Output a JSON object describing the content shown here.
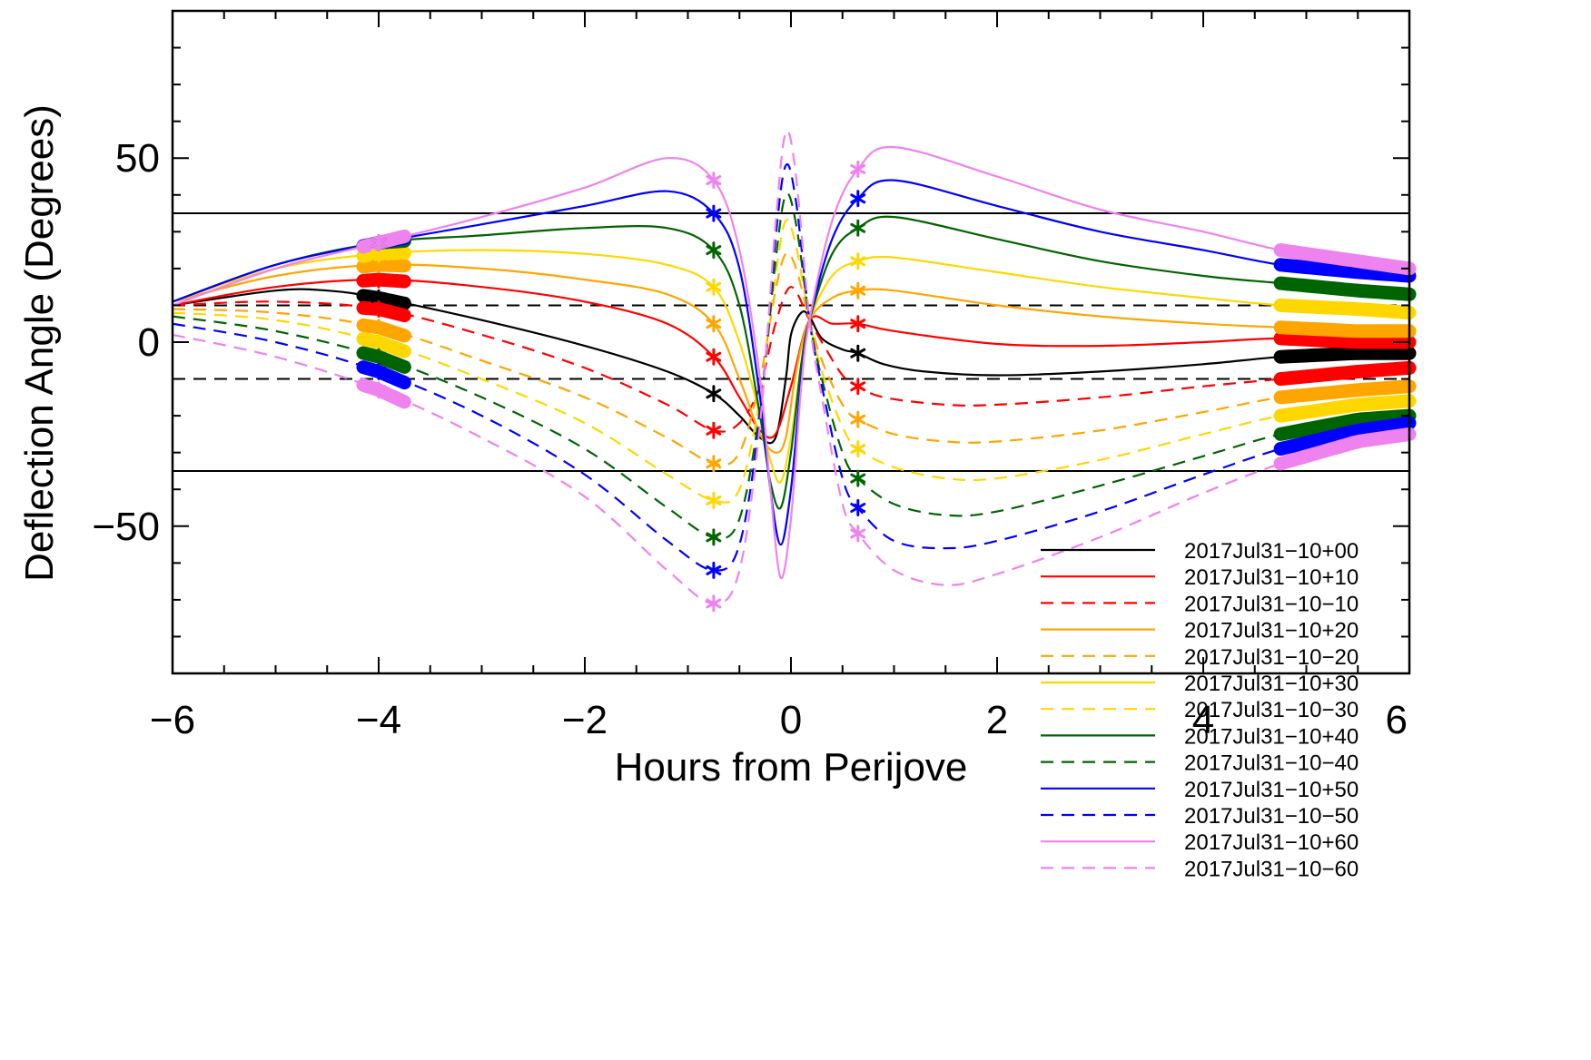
{
  "chart_data": {
    "type": "line",
    "title": "",
    "xlabel": "Hours from Perijove",
    "ylabel": "Deflection Angle (Degrees)",
    "xlim": [
      -6,
      6
    ],
    "ylim": [
      -90,
      90
    ],
    "xticks": [
      -6,
      -4,
      -2,
      0,
      2,
      4,
      6
    ],
    "yticks": [
      -50,
      0,
      50
    ],
    "xtick_labels": [
      "−6",
      "−4",
      "−2",
      "0",
      "2",
      "4",
      "6"
    ],
    "ytick_labels": [
      "−50",
      "0",
      "50"
    ],
    "grid": false,
    "legend_position": "bottom-right",
    "reference_lines": [
      {
        "y": 35,
        "style": "solid",
        "color": "#000000"
      },
      {
        "y": -35,
        "style": "solid",
        "color": "#000000"
      },
      {
        "y": 10,
        "style": "dashed",
        "color": "#000000"
      },
      {
        "y": -10,
        "style": "dashed",
        "color": "#000000"
      }
    ],
    "marker_x": [
      -4.0,
      -0.75,
      0.65
    ],
    "band_x": {
      "left": [
        -4.15,
        -3.75
      ],
      "right": [
        4.75,
        6.0
      ]
    },
    "series": [
      {
        "name": "2017Jul31−10+00",
        "color": "#000000",
        "style": "solid",
        "x": [
          -6,
          -5,
          -4.5,
          -4,
          -3,
          -2,
          -1.2,
          -0.75,
          -0.5,
          -0.3,
          -0.15,
          -0.05,
          0,
          0.1,
          0.18,
          0.3,
          0.5,
          0.65,
          0.9,
          1.3,
          2,
          3,
          4,
          4.75,
          5.5,
          6
        ],
        "y": [
          10,
          14,
          14,
          12,
          6,
          -1,
          -8,
          -14,
          -20,
          -26,
          -26,
          -10,
          2,
          8,
          7,
          1,
          -2,
          -3,
          -6,
          -8,
          -9,
          -8,
          -6,
          -4,
          -3,
          -3
        ]
      },
      {
        "name": "2017Jul31−10+10",
        "color": "#ff0000",
        "style": "solid",
        "x": [
          -6,
          -5,
          -4,
          -3,
          -2,
          -1.2,
          -0.75,
          -0.5,
          -0.3,
          -0.15,
          0,
          0.18,
          0.4,
          0.65,
          1,
          2,
          3,
          4,
          4.75,
          5.5,
          6
        ],
        "y": [
          10,
          15,
          17,
          15,
          11,
          5,
          -4,
          -15,
          -24,
          -25,
          -12,
          6,
          5,
          5,
          3,
          -0.5,
          -1,
          0,
          1,
          0,
          0
        ]
      },
      {
        "name": "2017Jul31−10−10",
        "color": "#ff0000",
        "style": "dashed",
        "x": [
          -6,
          -5,
          -4,
          -3,
          -2,
          -1.2,
          -0.75,
          -0.5,
          -0.3,
          -0.15,
          0,
          0.18,
          0.3,
          0.5,
          0.65,
          0.9,
          1.5,
          2,
          3,
          4,
          4.75,
          5.5,
          6
        ],
        "y": [
          10,
          11,
          9,
          2,
          -7,
          -17,
          -24,
          -22,
          -12,
          5,
          15,
          6,
          0,
          -9,
          -12,
          -15,
          -17,
          -17,
          -15,
          -12,
          -10,
          -8,
          -7
        ]
      },
      {
        "name": "2017Jul31−10+20",
        "color": "#ffa500",
        "style": "solid",
        "x": [
          -6,
          -5,
          -4,
          -3,
          -2,
          -1.2,
          -0.75,
          -0.5,
          -0.3,
          -0.15,
          -0.05,
          0.05,
          0.18,
          0.4,
          0.65,
          1,
          2,
          3,
          4,
          4.75,
          5.5,
          6
        ],
        "y": [
          11,
          18,
          21,
          20,
          17,
          13,
          5,
          -10,
          -25,
          -30,
          -26,
          -8,
          6,
          12,
          14,
          14,
          10,
          7,
          5,
          4,
          3,
          3
        ]
      },
      {
        "name": "2017Jul31−10−20",
        "color": "#ffa500",
        "style": "dashed",
        "x": [
          -6,
          -5,
          -4,
          -3,
          -2,
          -1.2,
          -0.75,
          -0.5,
          -0.3,
          -0.15,
          -0.05,
          0.05,
          0.18,
          0.3,
          0.5,
          0.65,
          1,
          1.5,
          2,
          3,
          4,
          4.75,
          5.5,
          6
        ],
        "y": [
          9,
          8,
          4,
          -5,
          -15,
          -26,
          -33,
          -30,
          -10,
          14,
          24,
          20,
          6,
          -5,
          -17,
          -21,
          -25,
          -27,
          -27,
          -24,
          -19,
          -15,
          -13,
          -12
        ]
      },
      {
        "name": "2017Jul31−10+30",
        "color": "#ffd700",
        "style": "solid",
        "x": [
          -6,
          -5,
          -4,
          -3,
          -2,
          -1.2,
          -0.75,
          -0.5,
          -0.3,
          -0.2,
          -0.1,
          0,
          0.1,
          0.18,
          0.4,
          0.65,
          1,
          2,
          3,
          4,
          4.75,
          5.5,
          6
        ],
        "y": [
          11,
          20,
          24,
          25,
          24,
          21,
          15,
          0,
          -20,
          -32,
          -38,
          -26,
          -6,
          6,
          18,
          22,
          23,
          19,
          15,
          12,
          10,
          9,
          8
        ]
      },
      {
        "name": "2017Jul31−10−30",
        "color": "#ffd700",
        "style": "dashed",
        "x": [
          -6,
          -5,
          -4,
          -3,
          -2,
          -1.2,
          -0.75,
          -0.5,
          -0.3,
          -0.15,
          -0.05,
          0.05,
          0.18,
          0.3,
          0.5,
          0.65,
          1,
          1.5,
          2,
          3,
          4,
          4.75,
          5.5,
          6
        ],
        "y": [
          8,
          6,
          0,
          -10,
          -22,
          -36,
          -43,
          -40,
          -15,
          18,
          33,
          26,
          6,
          -8,
          -23,
          -29,
          -34,
          -37,
          -37,
          -32,
          -25,
          -20,
          -17,
          -16
        ]
      },
      {
        "name": "2017Jul31−10+40",
        "color": "#006400",
        "style": "solid",
        "x": [
          -6,
          -5,
          -4,
          -3,
          -2,
          -1.2,
          -0.75,
          -0.5,
          -0.3,
          -0.2,
          -0.1,
          0,
          0.1,
          0.18,
          0.4,
          0.65,
          1,
          2,
          3,
          4,
          4.75,
          5.5,
          6
        ],
        "y": [
          11,
          21,
          27,
          29,
          31,
          31,
          25,
          10,
          -20,
          -38,
          -45,
          -30,
          -6,
          6,
          24,
          31,
          34,
          28,
          22,
          18,
          16,
          14,
          13
        ]
      },
      {
        "name": "2017Jul31−10−40",
        "color": "#006400",
        "style": "dashed",
        "x": [
          -6,
          -5,
          -4,
          -3,
          -2,
          -1.2,
          -0.75,
          -0.5,
          -0.3,
          -0.15,
          -0.05,
          0.05,
          0.18,
          0.3,
          0.5,
          0.65,
          1,
          1.5,
          2,
          3,
          4,
          4.75,
          5.5,
          6
        ],
        "y": [
          7,
          3,
          -4,
          -15,
          -29,
          -45,
          -53,
          -48,
          -18,
          22,
          40,
          32,
          6,
          -10,
          -30,
          -37,
          -44,
          -47,
          -46,
          -39,
          -31,
          -25,
          -21,
          -20
        ]
      },
      {
        "name": "2017Jul31−10+50",
        "color": "#0000ff",
        "style": "solid",
        "x": [
          -6,
          -5,
          -4,
          -3,
          -2,
          -1.2,
          -0.75,
          -0.5,
          -0.3,
          -0.2,
          -0.1,
          0,
          0.1,
          0.18,
          0.4,
          0.65,
          1,
          2,
          3,
          4,
          4.75,
          5.5,
          6
        ],
        "y": [
          11,
          21,
          27,
          32,
          37,
          41,
          35,
          20,
          -15,
          -40,
          -55,
          -40,
          -10,
          6,
          28,
          39,
          44,
          37,
          30,
          25,
          21,
          19,
          18
        ]
      },
      {
        "name": "2017Jul31−10−50",
        "color": "#0000ff",
        "style": "dashed",
        "x": [
          -6,
          -5,
          -4,
          -3,
          -2,
          -1.2,
          -0.75,
          -0.5,
          -0.3,
          -0.15,
          -0.05,
          0.05,
          0.18,
          0.3,
          0.5,
          0.65,
          1,
          1.5,
          2,
          3,
          4,
          4.75,
          5.5,
          6
        ],
        "y": [
          5,
          0,
          -8,
          -20,
          -36,
          -54,
          -62,
          -55,
          -20,
          28,
          48,
          38,
          6,
          -12,
          -37,
          -45,
          -54,
          -56,
          -54,
          -46,
          -36,
          -29,
          -24,
          -22
        ]
      },
      {
        "name": "2017Jul31−10+60",
        "color": "#ee82ee",
        "style": "solid",
        "x": [
          -6,
          -5,
          -4,
          -3,
          -2,
          -1.2,
          -0.75,
          -0.5,
          -0.3,
          -0.2,
          -0.1,
          0,
          0.1,
          0.18,
          0.4,
          0.65,
          1,
          2,
          3,
          4,
          4.75,
          5.5,
          6
        ],
        "y": [
          10,
          20,
          27,
          34,
          42,
          50,
          44,
          25,
          -10,
          -40,
          -64,
          -48,
          -12,
          6,
          33,
          47,
          53,
          45,
          36,
          30,
          25,
          22,
          20
        ]
      },
      {
        "name": "2017Jul31−10−60",
        "color": "#ee82ee",
        "style": "dashed",
        "x": [
          -6,
          -5,
          -4,
          -3,
          -2,
          -1.2,
          -0.75,
          -0.5,
          -0.3,
          -0.15,
          -0.05,
          0.05,
          0.18,
          0.3,
          0.5,
          0.65,
          1,
          1.5,
          2,
          3,
          4,
          4.75,
          5.5,
          6
        ],
        "y": [
          2,
          -4,
          -13,
          -26,
          -42,
          -62,
          -71,
          -62,
          -22,
          32,
          57,
          45,
          6,
          -15,
          -44,
          -52,
          -62,
          -66,
          -63,
          -53,
          -41,
          -33,
          -27,
          -25
        ]
      }
    ]
  }
}
